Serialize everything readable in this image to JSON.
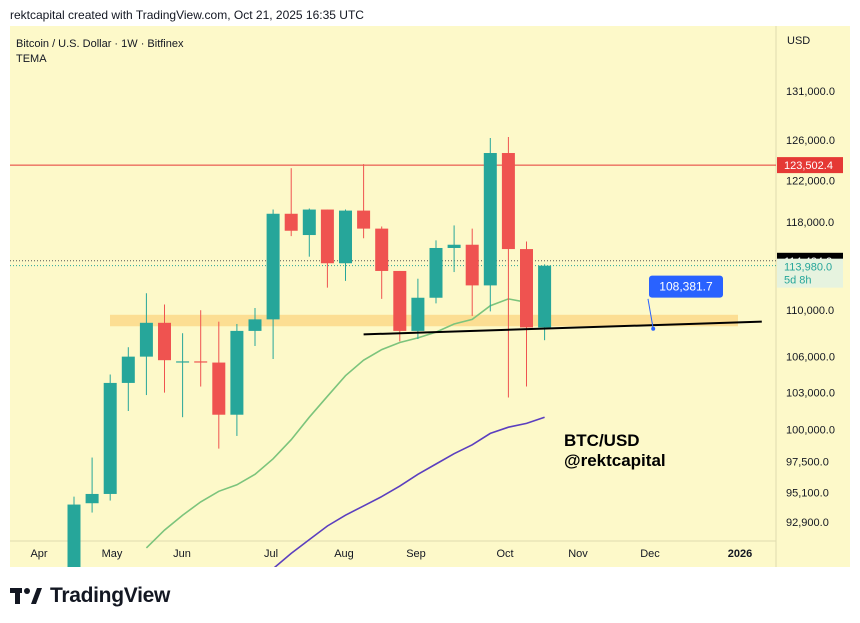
{
  "header": {
    "caption": "rektcapital created with TradingView.com, Oct 21, 2025 16:35 UTC"
  },
  "legend": {
    "symbol": "Bitcoin / U.S. Dollar · 1W · Bitfinex",
    "indicator": "TEMA"
  },
  "currency_label": "USD",
  "footer": {
    "brand": "TradingView"
  },
  "colors": {
    "up": "#26a69a",
    "down": "#ef5350",
    "background": "#fdf9c9",
    "zone": "#fcd98a",
    "tema": "#7cc47c",
    "long_ma": "#5b3fbf",
    "resistance": "#e53935",
    "price_badge": "#000000",
    "callout": "#2962ff"
  },
  "chart_data": {
    "type": "candlestick",
    "y_scale": "log",
    "ylim": [
      91500,
      138000
    ],
    "y_ticks": [
      "131,000.0",
      "126,000.0",
      "122,000.0",
      "118,000.0",
      "110,000.0",
      "106,000.0",
      "103,000.0",
      "100,000.0",
      "97,500.0",
      "95,100.0",
      "92,900.0"
    ],
    "x_ticks": [
      "Apr",
      "May",
      "Jun",
      "Jul",
      "Aug",
      "Sep",
      "Oct",
      "Nov",
      "Dec",
      "2026"
    ],
    "candles": [
      {
        "o": 89000,
        "h": 94800,
        "l": 88000,
        "c": 94200
      },
      {
        "o": 94300,
        "h": 97800,
        "l": 93600,
        "c": 95000
      },
      {
        "o": 95000,
        "h": 104500,
        "l": 94500,
        "c": 103800
      },
      {
        "o": 103800,
        "h": 106800,
        "l": 101500,
        "c": 106000
      },
      {
        "o": 106000,
        "h": 111500,
        "l": 102800,
        "c": 108900
      },
      {
        "o": 108900,
        "h": 110500,
        "l": 103000,
        "c": 105700
      },
      {
        "o": 105500,
        "h": 108000,
        "l": 101000,
        "c": 105600
      },
      {
        "o": 105600,
        "h": 110000,
        "l": 103500,
        "c": 105500
      },
      {
        "o": 105500,
        "h": 109000,
        "l": 98500,
        "c": 101200
      },
      {
        "o": 101200,
        "h": 108800,
        "l": 99500,
        "c": 108200
      },
      {
        "o": 108200,
        "h": 110200,
        "l": 106900,
        "c": 109200
      },
      {
        "o": 109200,
        "h": 119200,
        "l": 105800,
        "c": 118800
      },
      {
        "o": 118800,
        "h": 123200,
        "l": 116700,
        "c": 117200
      },
      {
        "o": 116800,
        "h": 119300,
        "l": 114800,
        "c": 119200
      },
      {
        "o": 119200,
        "h": 119200,
        "l": 112000,
        "c": 114200
      },
      {
        "o": 114200,
        "h": 119200,
        "l": 112600,
        "c": 119100
      },
      {
        "o": 119100,
        "h": 123600,
        "l": 116500,
        "c": 117400
      },
      {
        "o": 117400,
        "h": 117600,
        "l": 111000,
        "c": 113500
      },
      {
        "o": 113500,
        "h": 113500,
        "l": 107300,
        "c": 108200
      },
      {
        "o": 108200,
        "h": 112800,
        "l": 107500,
        "c": 111100
      },
      {
        "o": 111100,
        "h": 116300,
        "l": 110600,
        "c": 115600
      },
      {
        "o": 115600,
        "h": 117700,
        "l": 113400,
        "c": 115900
      },
      {
        "o": 115900,
        "h": 117400,
        "l": 109500,
        "c": 112200
      },
      {
        "o": 112200,
        "h": 126200,
        "l": 109900,
        "c": 124700
      },
      {
        "o": 124700,
        "h": 126300,
        "l": 102600,
        "c": 115500
      },
      {
        "o": 115500,
        "h": 116200,
        "l": 103500,
        "c": 108500
      },
      {
        "o": 108500,
        "h": 114100,
        "l": 107400,
        "c": 113980
      }
    ],
    "tema": [
      {
        "i": 4,
        "v": 91000
      },
      {
        "i": 5,
        "v": 92300
      },
      {
        "i": 6,
        "v": 93400
      },
      {
        "i": 7,
        "v": 94400
      },
      {
        "i": 8,
        "v": 95200
      },
      {
        "i": 9,
        "v": 95700
      },
      {
        "i": 10,
        "v": 96500
      },
      {
        "i": 11,
        "v": 97700
      },
      {
        "i": 12,
        "v": 99200
      },
      {
        "i": 13,
        "v": 101000
      },
      {
        "i": 14,
        "v": 102700
      },
      {
        "i": 15,
        "v": 104400
      },
      {
        "i": 16,
        "v": 105700
      },
      {
        "i": 17,
        "v": 106600
      },
      {
        "i": 18,
        "v": 107200
      },
      {
        "i": 19,
        "v": 107600
      },
      {
        "i": 20,
        "v": 108100
      },
      {
        "i": 21,
        "v": 108800
      },
      {
        "i": 22,
        "v": 109200
      },
      {
        "i": 23,
        "v": 110400
      },
      {
        "i": 24,
        "v": 111000
      },
      {
        "i": 25,
        "v": 110700
      }
    ],
    "long_ma": [
      {
        "i": 11,
        "v": 89500
      },
      {
        "i": 12,
        "v": 90600
      },
      {
        "i": 13,
        "v": 91600
      },
      {
        "i": 14,
        "v": 92600
      },
      {
        "i": 15,
        "v": 93400
      },
      {
        "i": 16,
        "v": 94100
      },
      {
        "i": 17,
        "v": 94800
      },
      {
        "i": 18,
        "v": 95600
      },
      {
        "i": 19,
        "v": 96500
      },
      {
        "i": 20,
        "v": 97300
      },
      {
        "i": 21,
        "v": 98100
      },
      {
        "i": 22,
        "v": 98800
      },
      {
        "i": 23,
        "v": 99700
      },
      {
        "i": 24,
        "v": 100200
      },
      {
        "i": 25,
        "v": 100500
      },
      {
        "i": 26,
        "v": 101000
      }
    ],
    "horizontal_line": {
      "value": 123502.4,
      "label": "123,502.4"
    },
    "support_zone": [
      108600,
      109600
    ],
    "trendline": [
      {
        "i": 16,
        "v": 107900
      },
      {
        "i": 38,
        "v": 109000
      }
    ],
    "callout": {
      "i": 32,
      "v": 108381.7,
      "label": "108,381.7"
    },
    "last_price": {
      "value": 114424.2,
      "label": "114,424.2"
    },
    "current_close": {
      "value": 113980,
      "label": "113,980.0",
      "countdown": "5d 8h"
    },
    "annotation": [
      "BTC/USD",
      "@rektcapital"
    ]
  }
}
